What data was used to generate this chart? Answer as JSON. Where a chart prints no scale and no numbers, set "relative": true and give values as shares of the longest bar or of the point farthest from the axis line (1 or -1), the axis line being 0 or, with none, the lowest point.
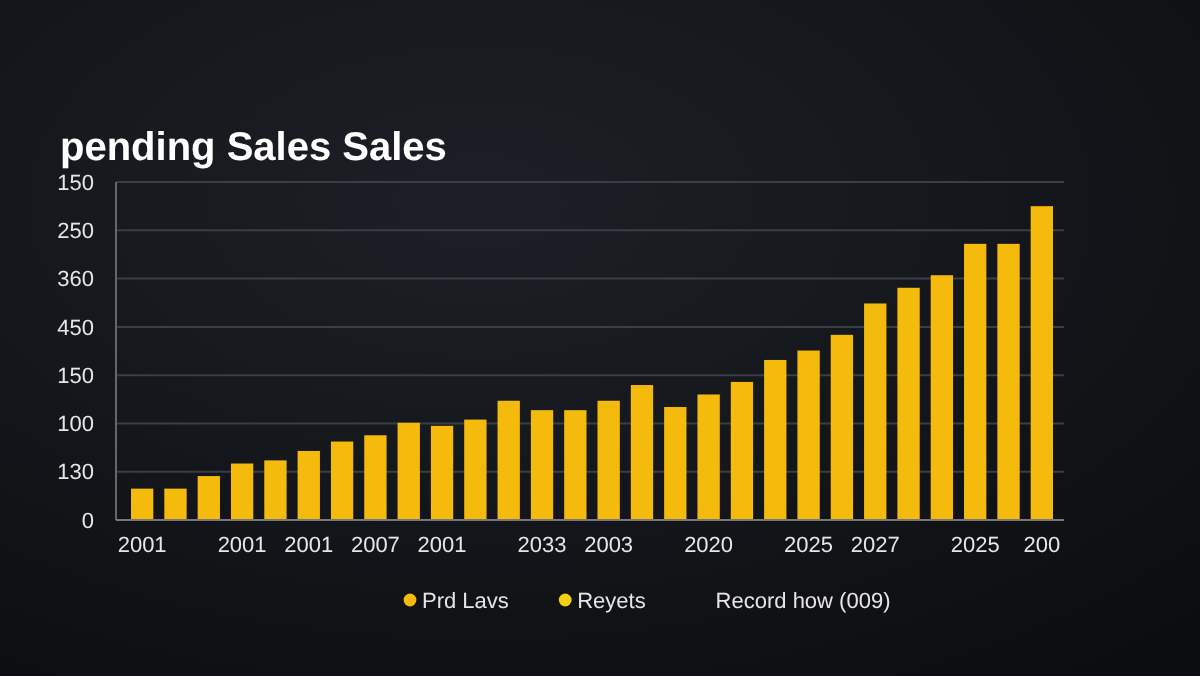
{
  "chart_data": {
    "type": "bar",
    "title": "pending Sales Sales",
    "relative": true,
    "categories": [
      "2001",
      null,
      null,
      "2001",
      null,
      "2001",
      null,
      "2007",
      null,
      "2001",
      null,
      null,
      "2033",
      null,
      "2003",
      null,
      null,
      "2020",
      null,
      null,
      "2025",
      null,
      "2027",
      null,
      null,
      "2025",
      null,
      "200"
    ],
    "series": [
      {
        "name": "Prd Lavs",
        "color": "#f5bb0c",
        "values": [
          0.1,
          0.1,
          0.14,
          0.18,
          0.19,
          0.22,
          0.25,
          0.27,
          0.31,
          0.3,
          0.32,
          0.38,
          0.35,
          0.35,
          0.38,
          0.43,
          0.36,
          0.4,
          0.44,
          0.51,
          0.54,
          0.59,
          0.69,
          0.74,
          0.78,
          0.88,
          0.88,
          1
        ]
      },
      {
        "name": "Reyets",
        "color": "#f5d010",
        "values": [
          null,
          null,
          null,
          null,
          null,
          null,
          null,
          null,
          null,
          null,
          null,
          null,
          null,
          null,
          null,
          null,
          null,
          null,
          null,
          null,
          null,
          null,
          null,
          null,
          null,
          null,
          null,
          null
        ]
      }
    ],
    "grid": "y",
    "legend": "bottom",
    "annotations": [
      "Record how (009)",
      "0",
      "130",
      "100",
      "150",
      "450",
      "360",
      "250",
      "150"
    ]
  }
}
